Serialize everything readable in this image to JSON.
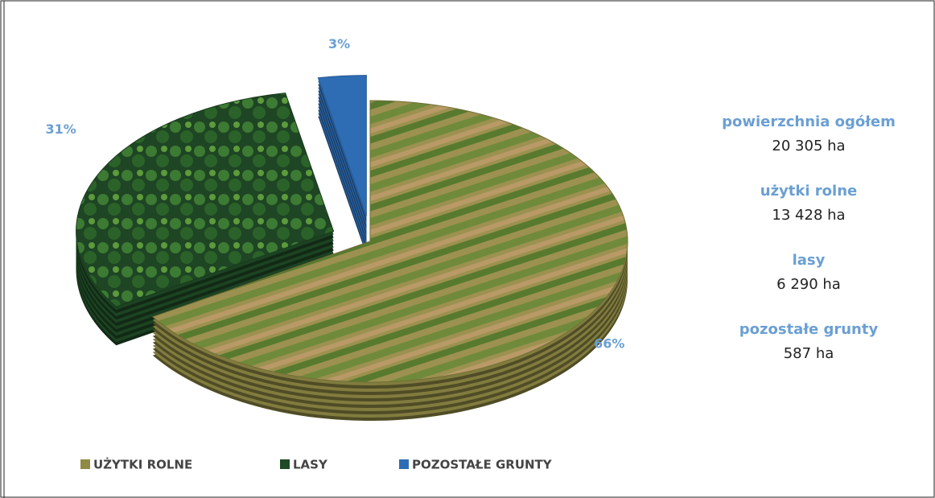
{
  "chart_data": {
    "type": "pie3d",
    "categories": [
      "UŻYTKI ROLNE",
      "LASY",
      "POZOSTAŁE GRUNTY"
    ],
    "values": [
      66,
      31,
      3
    ],
    "value_labels": [
      "66%",
      "31%",
      "3%"
    ],
    "colors": [
      "#8f8a45",
      "#1f4a26",
      "#2e6db4"
    ],
    "summary": [
      {
        "label": "powierzchnia ogółem",
        "value": "20 305 ha"
      },
      {
        "label": "użytki rolne",
        "value": "13 428 ha"
      },
      {
        "label": "lasy",
        "value": "6 290 ha"
      },
      {
        "label": "pozostałe grunty",
        "value": "587 ha"
      }
    ]
  }
}
